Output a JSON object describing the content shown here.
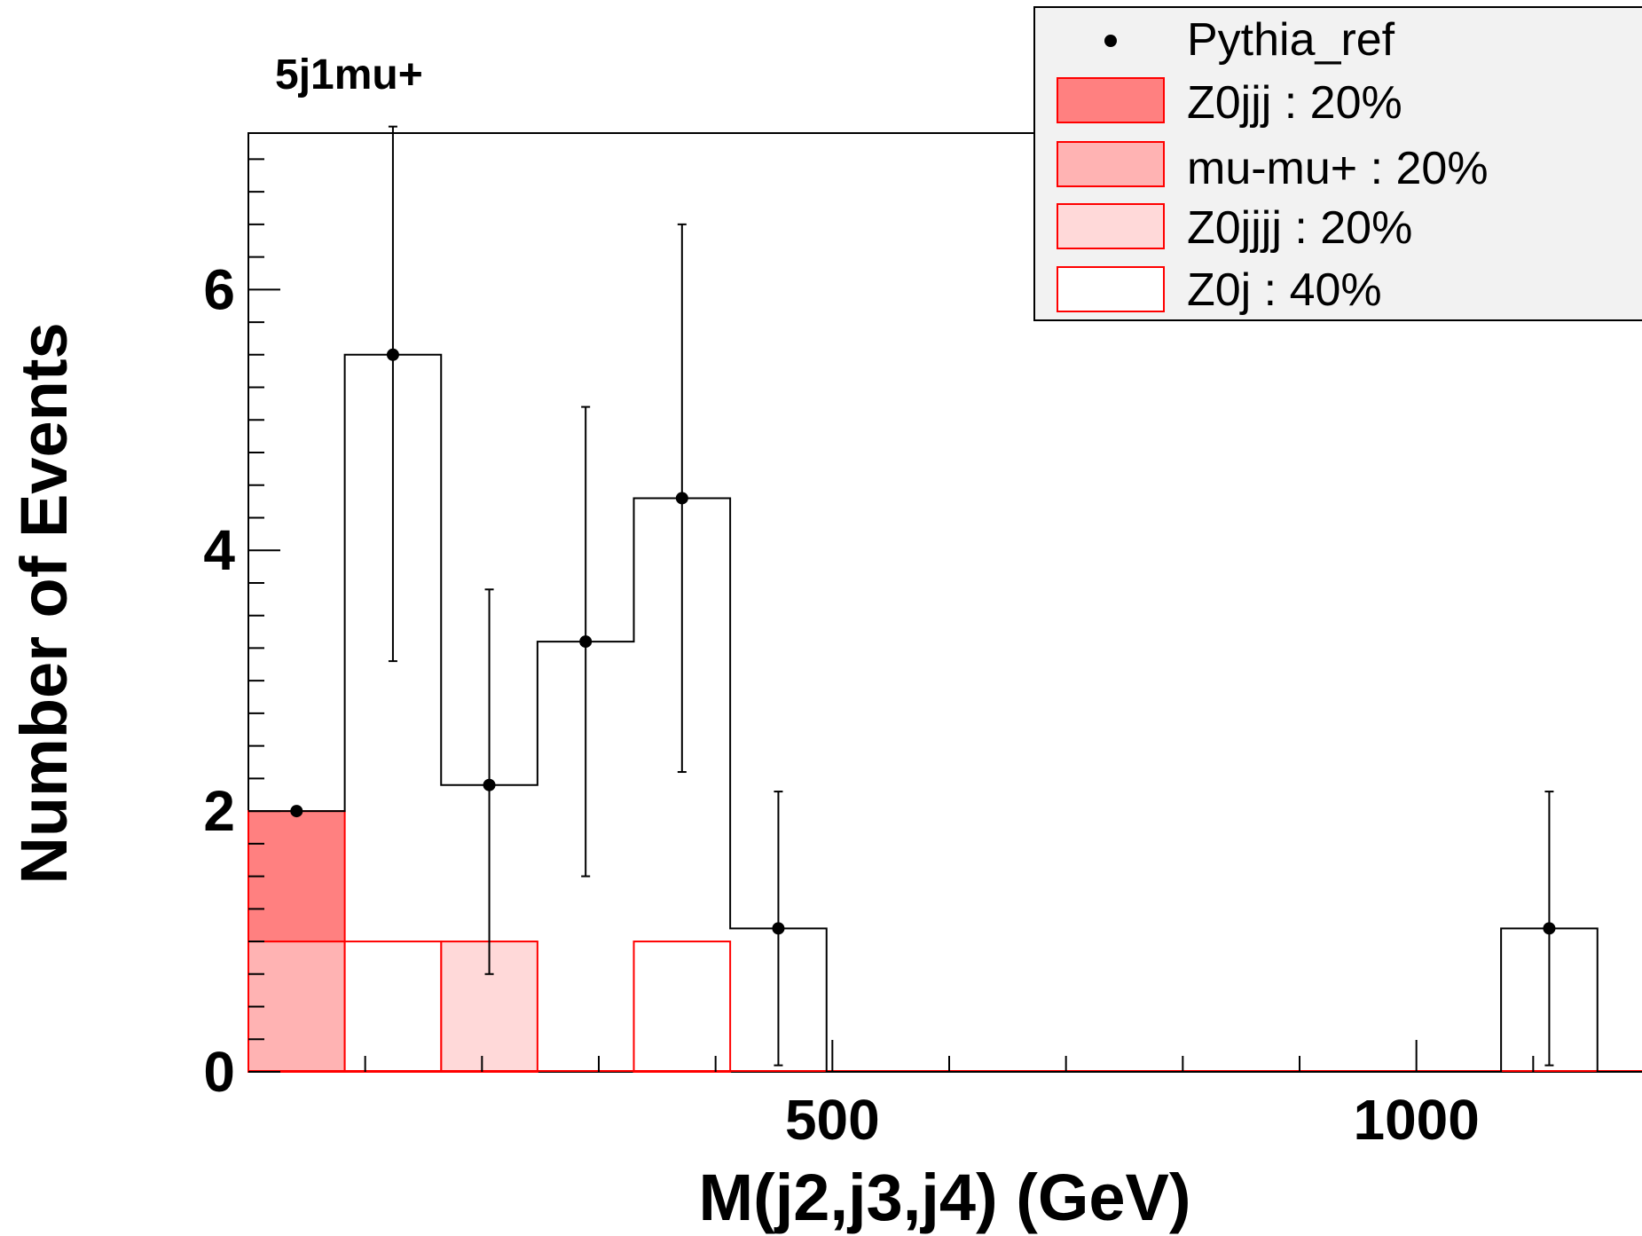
{
  "chart_data": {
    "type": "bar",
    "title": "5j1mu+",
    "xlabel": "M(j2,j3,j4) (GeV)",
    "ylabel": "Number of Events",
    "xlim": [
      0,
      1200
    ],
    "ylim": [
      0,
      7.2
    ],
    "x_ticks": [
      500,
      1000
    ],
    "y_ticks": [
      0,
      2,
      4,
      6
    ],
    "bin_edges": [
      0,
      82.5,
      165,
      247.5,
      330,
      412.5,
      495,
      577.5,
      660,
      742.5,
      825,
      907.5,
      990,
      1072.5,
      1155,
      1237.5
    ],
    "stack": [
      {
        "name": "mu-mu+ : 20%",
        "values": [
          1,
          0,
          0,
          0,
          0,
          0,
          0,
          0,
          0,
          0,
          0,
          0,
          0,
          0,
          0
        ],
        "fill": "#ffb3b3",
        "edge": "#ff0000"
      },
      {
        "name": "Z0jjj : 20%",
        "values": [
          1,
          0,
          0,
          0,
          0,
          0,
          0,
          0,
          0,
          0,
          0,
          0,
          0,
          0,
          0
        ],
        "fill": "#ff8080",
        "edge": "#ff0000"
      },
      {
        "name": "Z0jjjj : 20%",
        "values": [
          0,
          0,
          1,
          0,
          0,
          0,
          0,
          0,
          0,
          0,
          0,
          0,
          0,
          0,
          0
        ],
        "fill": "#ffd9d9",
        "edge": "#ff0000"
      },
      {
        "name": "Z0j : 40%",
        "values": [
          0,
          1,
          0,
          0,
          1,
          0,
          0,
          0,
          0,
          0,
          0,
          0,
          0,
          0,
          0
        ],
        "fill": "#ffffff",
        "edge": "#ff0000"
      }
    ],
    "reference": {
      "name": "Pythia_ref",
      "values": [
        2,
        5.5,
        2.2,
        3.3,
        4.4,
        1.1,
        0,
        0,
        0,
        0,
        0,
        0,
        0,
        1.1,
        0
      ],
      "err_up": [
        0,
        1.75,
        1.5,
        1.8,
        2.1,
        1.05,
        0,
        0,
        0,
        0,
        0,
        0,
        0,
        1.05,
        0
      ],
      "err_down": [
        0,
        2.35,
        1.45,
        1.8,
        2.1,
        1.05,
        0,
        0,
        0,
        0,
        0,
        0,
        0,
        1.05,
        0
      ]
    },
    "legend": {
      "position": "top-right",
      "entries": [
        "Pythia_ref",
        "Z0jjj : 20%",
        "mu-mu+ : 20%",
        "Z0jjjj : 20%",
        "Z0j : 40%"
      ]
    }
  }
}
